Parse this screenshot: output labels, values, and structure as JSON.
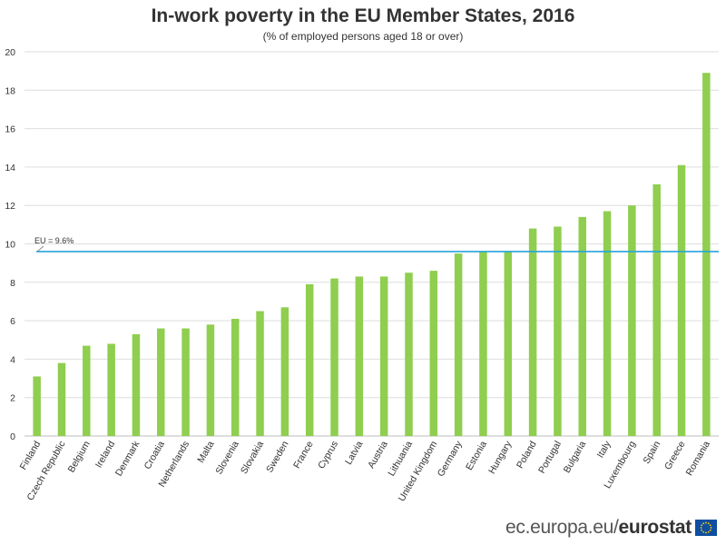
{
  "chart_data": {
    "type": "bar",
    "title": "In-work poverty in the EU Member States, 2016",
    "subtitle": "(% of employed persons aged 18 or over)",
    "categories": [
      "Finland",
      "Czech Republic",
      "Belgium",
      "Ireland",
      "Denmark",
      "Croatia",
      "Netherlands",
      "Malta",
      "Slovenia",
      "Slovakia",
      "Sweden",
      "France",
      "Cyprus",
      "Latvia",
      "Austria",
      "Lithuania",
      "United Kingdom",
      "Germany",
      "Estonia",
      "Hungary",
      "Poland",
      "Portugal",
      "Bulgaria",
      "Italy",
      "Luxembourg",
      "Spain",
      "Greece",
      "Romania"
    ],
    "values": [
      3.1,
      3.8,
      4.7,
      4.8,
      5.3,
      5.6,
      5.6,
      5.8,
      6.1,
      6.5,
      6.7,
      7.9,
      8.2,
      8.3,
      8.3,
      8.5,
      8.6,
      9.5,
      9.6,
      9.6,
      10.8,
      10.9,
      11.4,
      11.7,
      12.0,
      13.1,
      14.1,
      18.9
    ],
    "ylim": [
      0,
      20
    ],
    "yticks": [
      0,
      2,
      4,
      6,
      8,
      10,
      12,
      14,
      16,
      18,
      20
    ],
    "xlabel": "",
    "ylabel": "",
    "grid": true,
    "bar_color": "#8fce4f",
    "reference_line": {
      "label": "EU = 9.6%",
      "value": 9.6,
      "color": "#29a3dd"
    }
  },
  "footer": {
    "domain_text": "ec.europa.eu/",
    "brand_text": "eurostat",
    "icon": "eu-flag-icon"
  }
}
